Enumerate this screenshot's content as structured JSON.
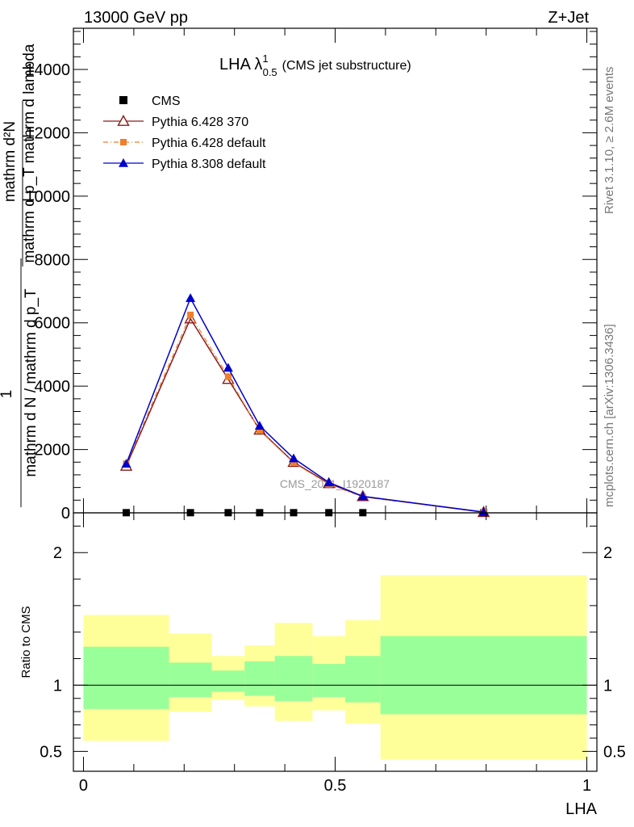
{
  "header": {
    "left": "13000 GeV pp",
    "right": "Z+Jet"
  },
  "side_labels": {
    "rivet": "Rivet 3.1.10, ≥ 2.6M events",
    "mcplots": "mcplots.cern.ch [arXiv:1306.3436]"
  },
  "chart_data": [
    {
      "type": "line",
      "panel": "main",
      "title_main": "LHA λ",
      "title_sup": "1",
      "title_sub": "0.5",
      "title_rest": "(CMS jet substructure)",
      "ylabel_top": "mathrm d²N",
      "ylabel_top_den": "mathrm d p_T mathrm d lambda",
      "ylabel_one": "1",
      "ylabel_bottom": "mathrm d N / mathrm d p_T",
      "watermark": "CMS_2021_I1920187",
      "xlim": [
        -0.02,
        1.02
      ],
      "ylim": [
        0,
        15300
      ],
      "yticks": [
        2000,
        4000,
        6000,
        8000,
        10000,
        12000,
        14000
      ],
      "ytick_labels": [
        "2000",
        "4000",
        "6000",
        "8000",
        "10000",
        "12000",
        "14000"
      ],
      "bin_edges": [
        0,
        0.17,
        0.255,
        0.32,
        0.38,
        0.455,
        0.52,
        0.59,
        1.0
      ],
      "x": [
        0.085,
        0.2125,
        0.2875,
        0.35,
        0.4175,
        0.4875,
        0.555,
        0.795
      ],
      "legend_position": "upper-left",
      "series": [
        {
          "name": "CMS",
          "color": "#000000",
          "marker": "square",
          "values": [
            5,
            5,
            5,
            5,
            5,
            5,
            5,
            5
          ]
        },
        {
          "name": "Pythia 6.428 370",
          "color": "#8b1a1a",
          "marker": "open-triangle",
          "values": [
            1480,
            6130,
            4220,
            2620,
            1600,
            930,
            520,
            20
          ]
        },
        {
          "name": "Pythia 6.428 default",
          "color": "#ee7f2d",
          "marker": "square",
          "dashed": true,
          "values": [
            1550,
            6250,
            4300,
            2600,
            1580,
            900,
            500,
            20
          ]
        },
        {
          "name": "Pythia 8.308 default",
          "color": "#0000cc",
          "marker": "filled-triangle",
          "values": [
            1550,
            6780,
            4580,
            2750,
            1720,
            960,
            520,
            25
          ]
        }
      ]
    },
    {
      "type": "area",
      "panel": "ratio",
      "ylabel": "Ratio to CMS",
      "xlabel": "LHA",
      "xlim": [
        -0.02,
        1.02
      ],
      "ylim": [
        0.35,
        2.3
      ],
      "yticks": [
        0.5,
        1,
        2
      ],
      "ytick_labels": [
        "0.5",
        "1",
        "2"
      ],
      "xticks": [
        0,
        0.5,
        1
      ],
      "xtick_labels": [
        "0",
        "0.5",
        "1"
      ],
      "bin_edges": [
        0,
        0.17,
        0.255,
        0.32,
        0.38,
        0.455,
        0.52,
        0.59,
        1.0
      ],
      "band_yellow_lo": [
        0.58,
        0.8,
        0.89,
        0.84,
        0.73,
        0.81,
        0.71,
        0.44
      ],
      "band_yellow_hi": [
        1.53,
        1.39,
        1.22,
        1.3,
        1.47,
        1.37,
        1.49,
        1.83
      ],
      "band_green_lo": [
        0.82,
        0.91,
        0.95,
        0.92,
        0.88,
        0.91,
        0.87,
        0.78
      ],
      "band_green_hi": [
        1.29,
        1.17,
        1.11,
        1.18,
        1.22,
        1.16,
        1.22,
        1.37
      ],
      "yellow_color": "#ffff99",
      "green_color": "#99ff99"
    }
  ]
}
